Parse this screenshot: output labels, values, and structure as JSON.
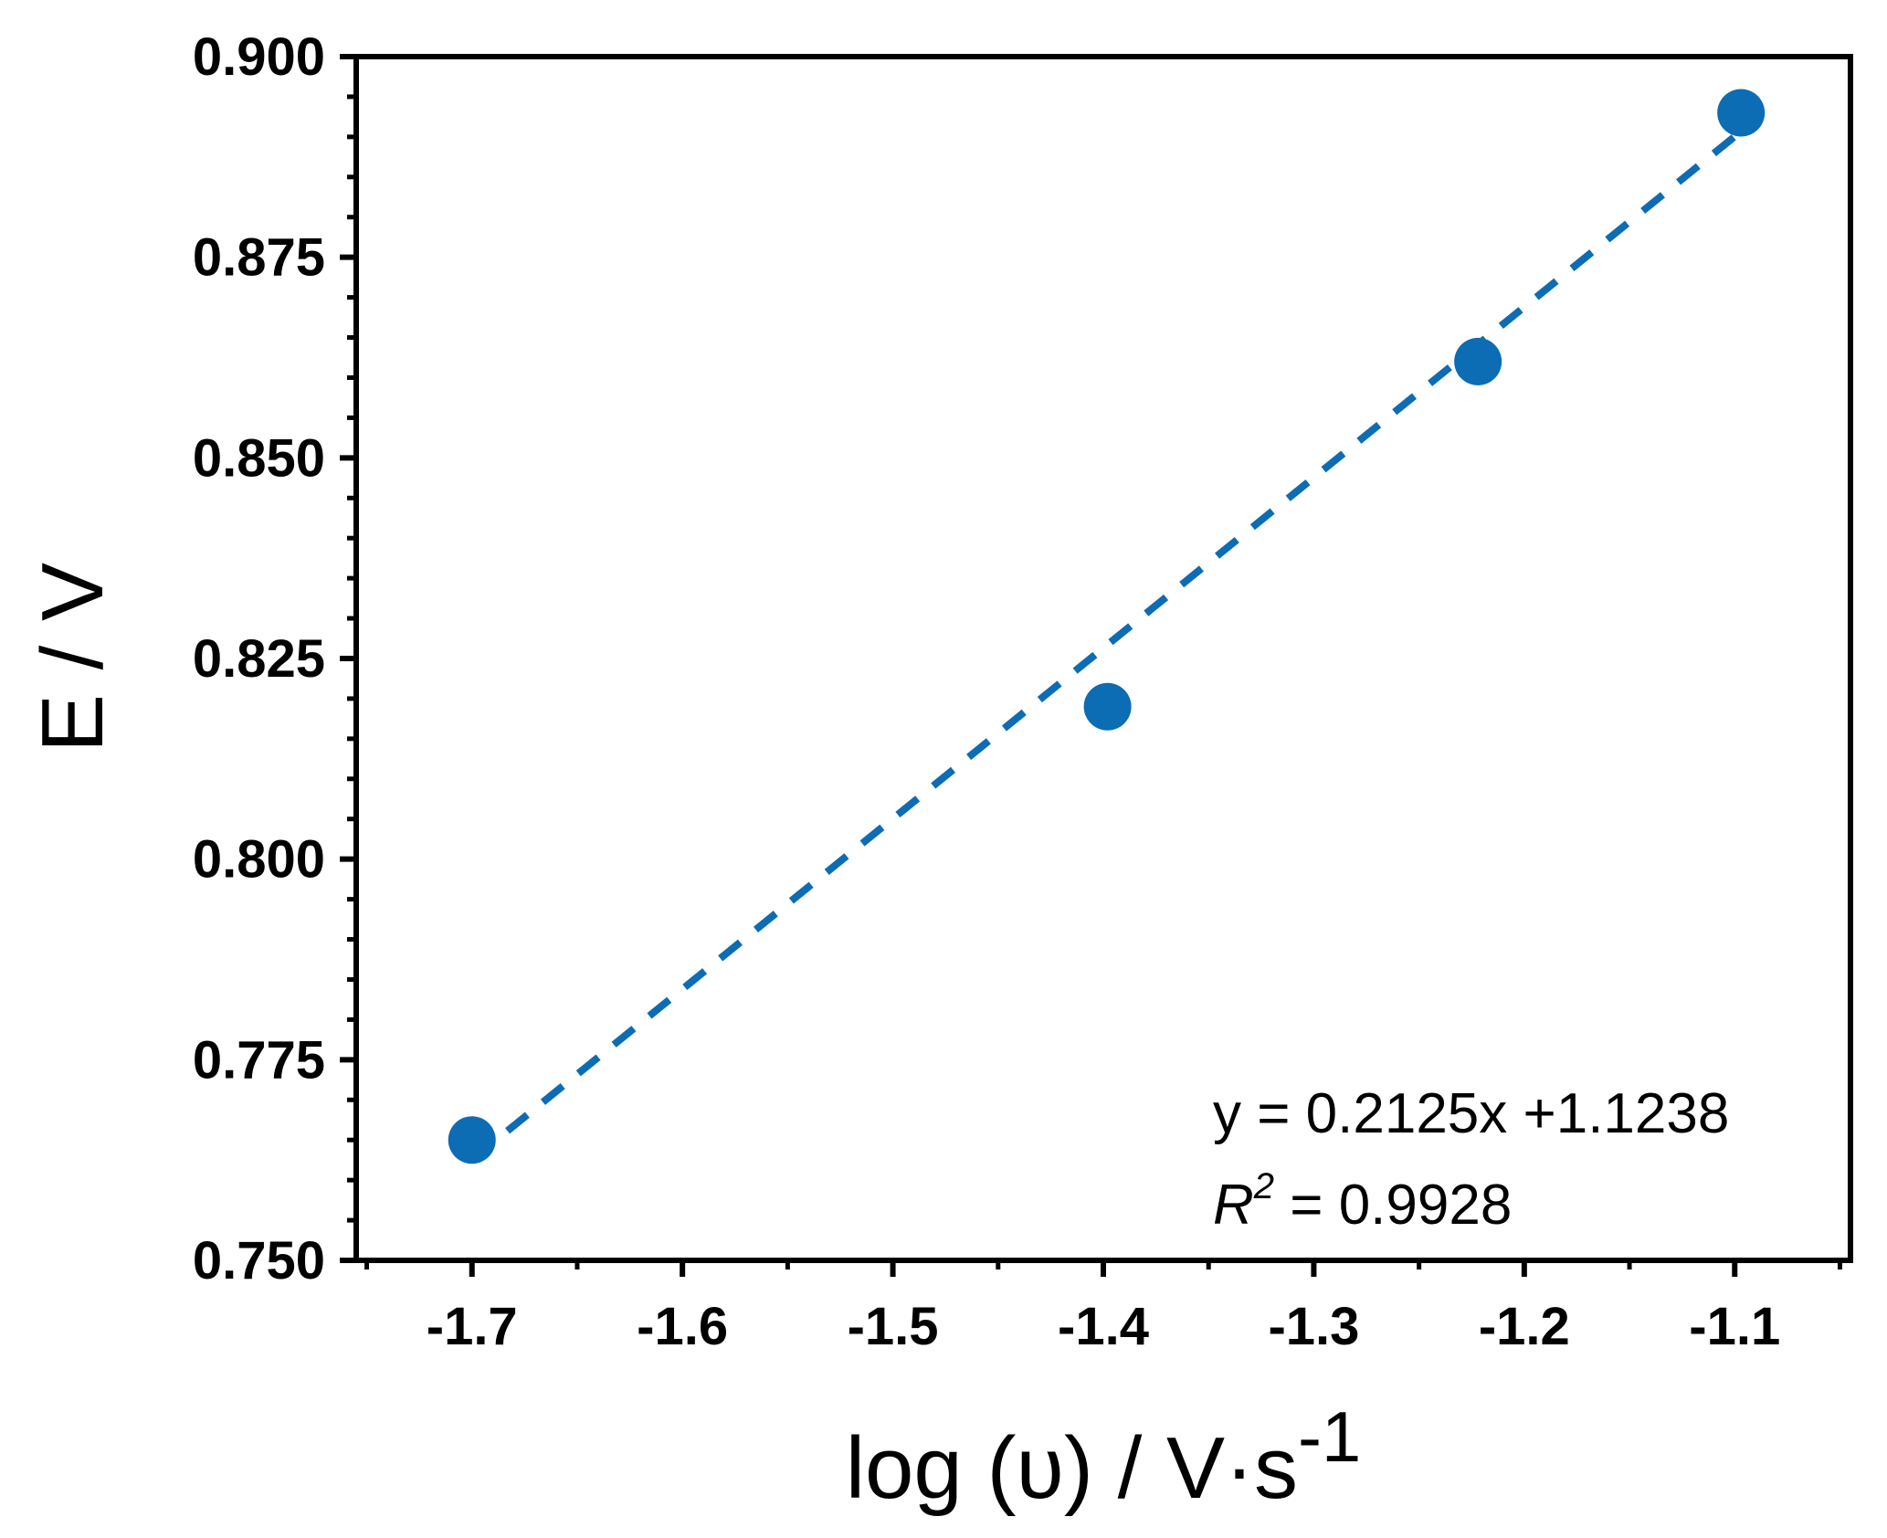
{
  "chart_data": {
    "type": "scatter",
    "title": "",
    "xlabel": "log (υ) / V·s",
    "xlabel_superscript": "-1",
    "ylabel": "E / V",
    "xlim": [
      -1.755,
      -1.045
    ],
    "ylim": [
      0.75,
      0.9
    ],
    "x_ticks": [
      -1.7,
      -1.6,
      -1.5,
      -1.4,
      -1.3,
      -1.2,
      -1.1
    ],
    "x_tick_labels": [
      "-1.7",
      "-1.6",
      "-1.5",
      "-1.4",
      "-1.3",
      "-1.2",
      "-1.1"
    ],
    "y_ticks": [
      0.75,
      0.775,
      0.8,
      0.825,
      0.85,
      0.875,
      0.9
    ],
    "y_tick_labels": [
      "0.750",
      "0.775",
      "0.800",
      "0.825",
      "0.850",
      "0.875",
      "0.900"
    ],
    "grid": false,
    "series": [
      {
        "name": "data",
        "x": [
          -1.7,
          -1.398,
          -1.222,
          -1.097
        ],
        "y": [
          0.765,
          0.819,
          0.862,
          0.893
        ],
        "color": "#0c6cb4"
      }
    ],
    "fit": {
      "slope": 0.2125,
      "intercept": 1.1238,
      "x_range": [
        -1.7,
        -1.097
      ],
      "color": "#0c6cb4",
      "style": "dashed"
    },
    "annotations": {
      "equation": "y = 0.2125x +1.1238",
      "r2_symbol": "R",
      "r2_power": "2",
      "r2_value": " = 0.9928"
    }
  }
}
